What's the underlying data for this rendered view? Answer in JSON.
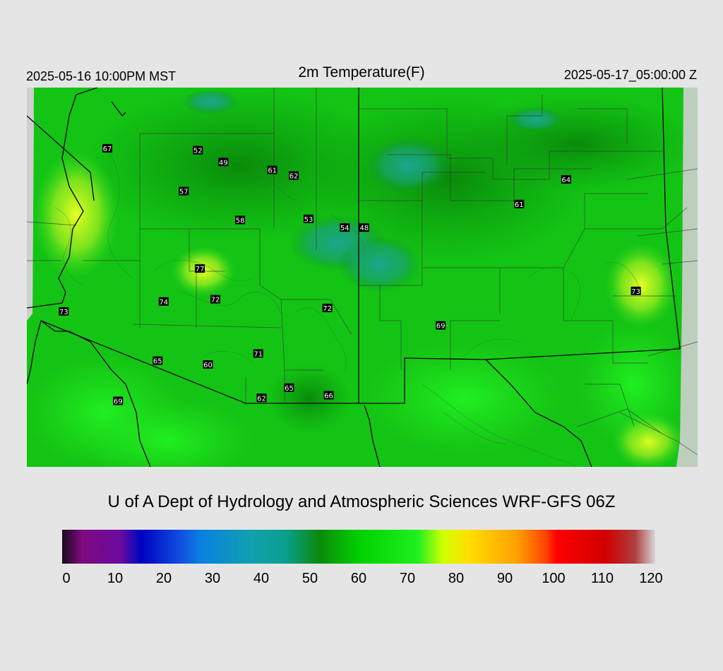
{
  "header": {
    "local_time": "2025-05-16 10:00PM MST",
    "title": "2m Temperature(F)",
    "utc_time": "2025-05-17_05:00:00 Z"
  },
  "footer": {
    "credit": "U of A Dept of Hydrology and Atmospheric Sciences WRF-GFS 06Z"
  },
  "colorbar": {
    "min": 0,
    "max": 120,
    "tick_labels": [
      "0",
      "10",
      "20",
      "30",
      "40",
      "50",
      "60",
      "70",
      "80",
      "90",
      "100",
      "110",
      "120"
    ],
    "stops": [
      {
        "v": 0,
        "c": "#1a0a1e"
      },
      {
        "v": 2,
        "c": "#4a0a4e"
      },
      {
        "v": 4,
        "c": "#800a80"
      },
      {
        "v": 12,
        "c": "#6a0aa0"
      },
      {
        "v": 14,
        "c": "#2a0ab0"
      },
      {
        "v": 16,
        "c": "#0000c0"
      },
      {
        "v": 24,
        "c": "#1050e0"
      },
      {
        "v": 28,
        "c": "#0a80e0"
      },
      {
        "v": 38,
        "c": "#10a0b0"
      },
      {
        "v": 45,
        "c": "#0aa090"
      },
      {
        "v": 52,
        "c": "#0a8a0a"
      },
      {
        "v": 60,
        "c": "#00d000"
      },
      {
        "v": 72,
        "c": "#20f020"
      },
      {
        "v": 77,
        "c": "#d0ff00"
      },
      {
        "v": 82,
        "c": "#ffe000"
      },
      {
        "v": 92,
        "c": "#ffa000"
      },
      {
        "v": 98,
        "c": "#ff4000"
      },
      {
        "v": 100,
        "c": "#ff0000"
      },
      {
        "v": 110,
        "c": "#d00000"
      },
      {
        "v": 116,
        "c": "#b04040"
      },
      {
        "v": 120,
        "c": "#d8d8d8"
      }
    ]
  },
  "stations": [
    {
      "value": "67",
      "lon": 0.12,
      "lat": 0.16
    },
    {
      "value": "52",
      "lon": 0.255,
      "lat": 0.165
    },
    {
      "value": "49",
      "lon": 0.293,
      "lat": 0.196
    },
    {
      "value": "61",
      "lon": 0.366,
      "lat": 0.217
    },
    {
      "value": "62",
      "lon": 0.398,
      "lat": 0.232
    },
    {
      "value": "57",
      "lon": 0.234,
      "lat": 0.273
    },
    {
      "value": "58",
      "lon": 0.318,
      "lat": 0.349
    },
    {
      "value": "53",
      "lon": 0.42,
      "lat": 0.346
    },
    {
      "value": "54",
      "lon": 0.474,
      "lat": 0.369
    },
    {
      "value": "48",
      "lon": 0.503,
      "lat": 0.369
    },
    {
      "value": "64",
      "lon": 0.804,
      "lat": 0.242
    },
    {
      "value": "61",
      "lon": 0.734,
      "lat": 0.307
    },
    {
      "value": "77",
      "lon": 0.258,
      "lat": 0.477
    },
    {
      "value": "74",
      "lon": 0.204,
      "lat": 0.564
    },
    {
      "value": "72",
      "lon": 0.281,
      "lat": 0.558
    },
    {
      "value": "72",
      "lon": 0.448,
      "lat": 0.581
    },
    {
      "value": "73",
      "lon": 0.055,
      "lat": 0.59
    },
    {
      "value": "73",
      "lon": 0.908,
      "lat": 0.536
    },
    {
      "value": "69",
      "lon": 0.617,
      "lat": 0.627
    },
    {
      "value": "71",
      "lon": 0.345,
      "lat": 0.701
    },
    {
      "value": "65",
      "lon": 0.195,
      "lat": 0.72
    },
    {
      "value": "60",
      "lon": 0.27,
      "lat": 0.73
    },
    {
      "value": "65",
      "lon": 0.391,
      "lat": 0.791
    },
    {
      "value": "62",
      "lon": 0.35,
      "lat": 0.818
    },
    {
      "value": "66",
      "lon": 0.45,
      "lat": 0.811
    },
    {
      "value": "69",
      "lon": 0.136,
      "lat": 0.826
    }
  ],
  "colors": {
    "background": "#e5e5e5",
    "no_data": "#cfcfcf",
    "border_line": "#000000",
    "county_line": "#333333"
  }
}
